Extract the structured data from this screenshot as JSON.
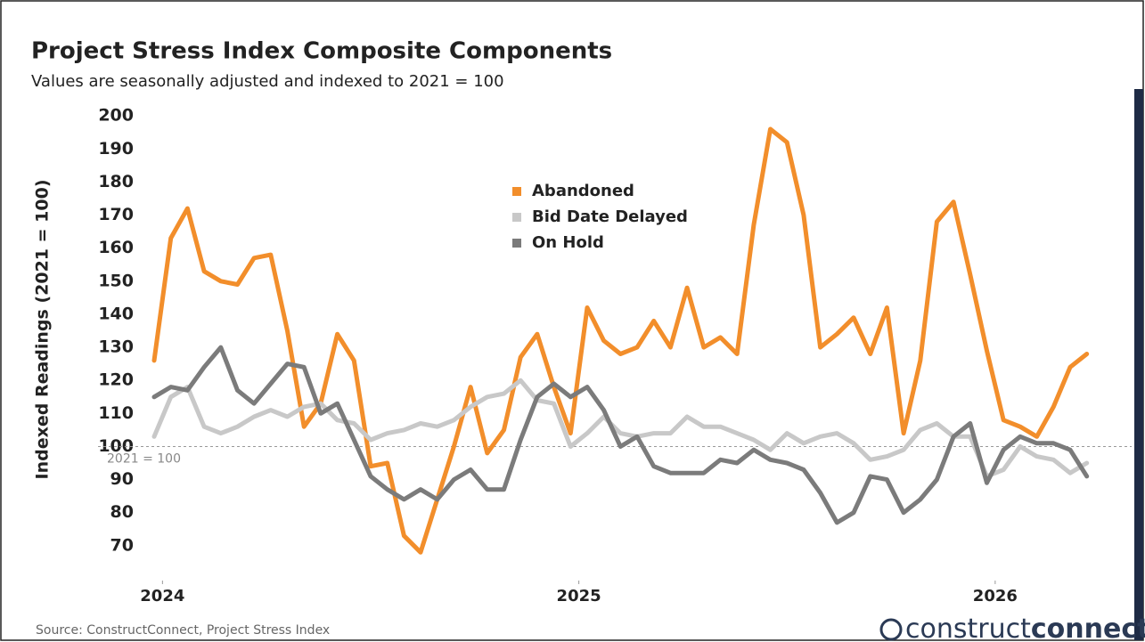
{
  "chart_data": {
    "type": "line",
    "title": "Project Stress Index Composite Components",
    "subtitle": "Values are seasonally adjusted and indexed to 2021 = 100",
    "y_label": "Indexed Readings (2021 = 100)",
    "source": "Source: ConstructConnect, Project Stress Index",
    "logo": [
      "construct",
      "connect"
    ],
    "x": [
      2023.98,
      2024.02,
      2024.06,
      2024.1,
      2024.14,
      2024.18,
      2024.22,
      2024.26,
      2024.3,
      2024.34,
      2024.38,
      2024.42,
      2024.46,
      2024.5,
      2024.54,
      2024.58,
      2024.62,
      2024.66,
      2024.7,
      2024.74,
      2024.78,
      2024.82,
      2024.86,
      2024.9,
      2024.94,
      2024.98,
      2025.02,
      2025.06,
      2025.1,
      2025.14,
      2025.18,
      2025.22,
      2025.26,
      2025.3,
      2025.34,
      2025.38,
      2025.42,
      2025.46,
      2025.5,
      2025.54,
      2025.58,
      2025.62,
      2025.66,
      2025.7,
      2025.74,
      2025.78,
      2025.82,
      2025.86,
      2025.9,
      2025.94,
      2025.98,
      2026.02,
      2026.06,
      2026.1,
      2026.14,
      2026.18,
      2026.22
    ],
    "series": [
      {
        "name": "Abandoned",
        "color": "#f28e2b",
        "values": [
          126,
          163,
          172,
          153,
          150,
          149,
          157,
          158,
          135,
          106,
          113,
          134,
          126,
          94,
          95,
          73,
          68,
          84,
          100,
          118,
          98,
          105,
          127,
          134,
          118,
          104,
          142,
          132,
          128,
          130,
          138,
          130,
          148,
          130,
          133,
          128,
          167,
          196,
          192,
          170,
          130,
          134,
          139,
          128,
          142,
          104,
          126,
          168,
          174,
          152,
          129,
          108,
          106,
          103,
          112,
          124,
          128
        ]
      },
      {
        "name": "Bid Date Delayed",
        "color": "#c8c8c8",
        "values": [
          103,
          115,
          118,
          106,
          104,
          106,
          109,
          111,
          109,
          112,
          113,
          108,
          107,
          102,
          104,
          105,
          107,
          106,
          108,
          112,
          115,
          116,
          120,
          114,
          113,
          100,
          104,
          109,
          104,
          103,
          104,
          104,
          109,
          106,
          106,
          104,
          102,
          99,
          104,
          101,
          103,
          104,
          101,
          96,
          97,
          99,
          105,
          107,
          103,
          103,
          91,
          93,
          100,
          97,
          96,
          92,
          95
        ]
      },
      {
        "name": "On Hold",
        "color": "#7b7b7b",
        "values": [
          115,
          118,
          117,
          124,
          130,
          117,
          113,
          119,
          125,
          124,
          110,
          113,
          102,
          91,
          87,
          84,
          87,
          84,
          90,
          93,
          87,
          87,
          102,
          115,
          119,
          115,
          118,
          111,
          100,
          103,
          94,
          92,
          92,
          92,
          96,
          95,
          99,
          96,
          95,
          93,
          86,
          77,
          80,
          91,
          90,
          80,
          84,
          90,
          103,
          107,
          89,
          99,
          103,
          101,
          101,
          99,
          91
        ]
      }
    ],
    "xlim": [
      2023.98,
      2026.225
    ],
    "xticks": [
      2024,
      2025,
      2026
    ],
    "ylim": [
      60,
      203
    ],
    "yticks": [
      70,
      80,
      90,
      100,
      110,
      120,
      130,
      140,
      150,
      160,
      170,
      180,
      190,
      200
    ],
    "reference_line": {
      "value": 100,
      "label": "2021 = 100"
    },
    "legend": "upper center",
    "grid": false
  }
}
